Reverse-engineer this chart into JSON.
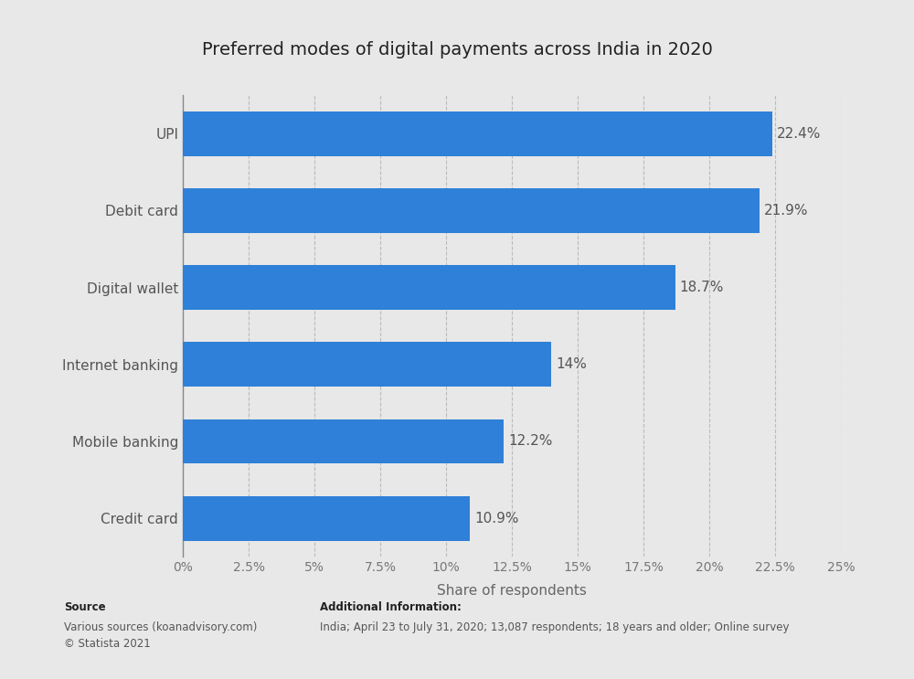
{
  "title": "Preferred modes of digital payments across India in 2020",
  "categories": [
    "UPI",
    "Debit card",
    "Digital wallet",
    "Internet banking",
    "Mobile banking",
    "Credit card"
  ],
  "values": [
    22.4,
    21.9,
    18.7,
    14.0,
    12.2,
    10.9
  ],
  "labels": [
    "22.4%",
    "21.9%",
    "18.7%",
    "14%",
    "12.2%",
    "10.9%"
  ],
  "bar_color": "#2f80d8",
  "background_color": "#e8e8e8",
  "plot_bg_color": "#e8e8e8",
  "xlabel": "Share of respondents",
  "xlim": [
    0,
    25
  ],
  "xticks": [
    0,
    2.5,
    5,
    7.5,
    10,
    12.5,
    15,
    17.5,
    20,
    22.5,
    25
  ],
  "xtick_labels": [
    "0%",
    "2.5%",
    "5%",
    "7.5%",
    "10%",
    "12.5%",
    "15%",
    "17.5%",
    "20%",
    "22.5%",
    "25%"
  ],
  "title_fontsize": 14,
  "label_fontsize": 11,
  "tick_fontsize": 10,
  "source_bold": "Source",
  "source_body": "Various sources (koanadvisory.com)\n© Statista 2021",
  "additional_bold": "Additional Information:",
  "additional_body": "India; April 23 to July 31, 2020; 13,087 respondents; 18 years and older; Online survey"
}
